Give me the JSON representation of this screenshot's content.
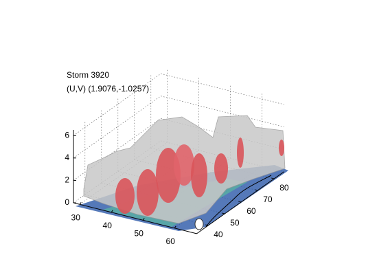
{
  "chart_data": {
    "type": "isosurface",
    "title": "Storm 3920",
    "subtitle": "(U,V) (1.9076,-1.0257)",
    "xlim": [
      28,
      67
    ],
    "xticks": [
      30,
      40,
      50,
      60
    ],
    "ylim": [
      33,
      86
    ],
    "yticks": [
      40,
      50,
      60,
      70,
      80
    ],
    "zlim": [
      0,
      6.5
    ],
    "zticks": [
      0,
      2,
      4,
      6
    ],
    "grid": true
  }
}
